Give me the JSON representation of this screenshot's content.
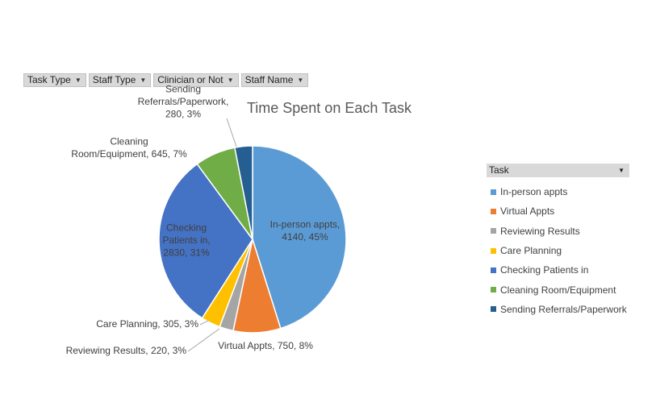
{
  "filters": [
    {
      "label": "Task Type"
    },
    {
      "label": "Staff Type"
    },
    {
      "label": "Clinician or Not"
    },
    {
      "label": "Staff Name"
    }
  ],
  "legend": {
    "header": "Task",
    "dropdown_icon": "caret-down-icon"
  },
  "chart_data": {
    "type": "pie",
    "title": "Time Spent on Each Task",
    "legend_position": "right",
    "slices": [
      {
        "name": "In-person appts",
        "value": 4140,
        "percent": "45%",
        "color": "#5b9bd5",
        "label_lines": [
          "In-person appts,",
          "4140, 45%"
        ]
      },
      {
        "name": "Virtual Appts",
        "value": 750,
        "percent": "8%",
        "color": "#ed7d31",
        "label_lines": [
          "Virtual Appts, 750, 8%"
        ]
      },
      {
        "name": "Reviewing Results",
        "value": 220,
        "percent": "3%",
        "color": "#a5a5a5",
        "label_lines": [
          "Reviewing Results, 220, 3%"
        ]
      },
      {
        "name": "Care Planning",
        "value": 305,
        "percent": "3%",
        "color": "#ffc000",
        "label_lines": [
          "Care Planning, 305, 3%"
        ]
      },
      {
        "name": "Checking Patients in",
        "value": 2830,
        "percent": "31%",
        "color": "#4472c4",
        "label_lines": [
          "Checking",
          "Patients in,",
          "2830, 31%"
        ]
      },
      {
        "name": "Cleaning Room/Equipment",
        "value": 645,
        "percent": "7%",
        "color": "#70ad47",
        "label_lines": [
          "Cleaning",
          "Room/Equipment, 645, 7%"
        ]
      },
      {
        "name": "Sending Referrals/Paperwork",
        "value": 280,
        "percent": "3%",
        "color": "#255e91",
        "label_lines": [
          "Sending",
          "Referrals/Paperwork,",
          "280, 3%"
        ]
      }
    ]
  }
}
